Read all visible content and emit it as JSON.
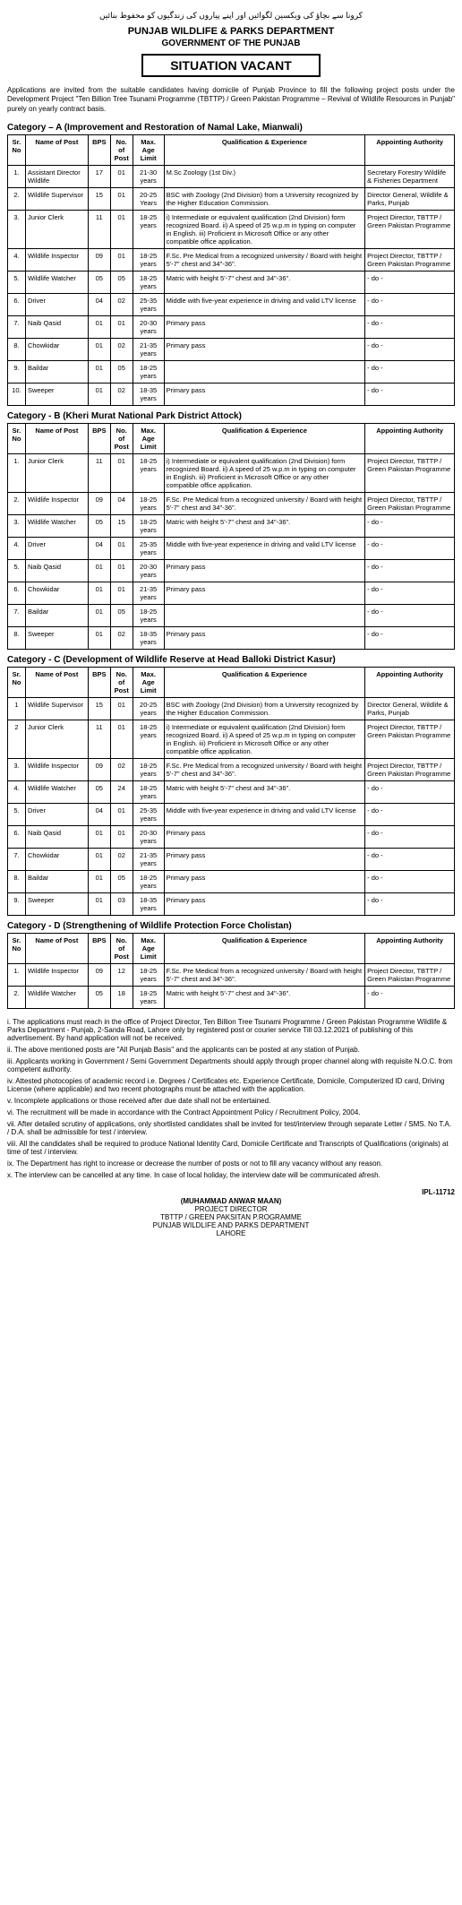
{
  "urdu_top": "کرونا سے بچاؤ کی ویکسین لگوائیں اور اپنے پیاروں کی زندگیوں کو محفوظ بنائیں",
  "dept": "PUNJAB WILDLIFE & PARKS DEPARTMENT",
  "govt": "GOVERNMENT OF THE PUNJAB",
  "title": "SITUATION VACANT",
  "intro": "Applications are invited from the suitable candidates having domicile of Punjab Province to fill the following project posts under the Development Project \"Ten Billion Tree Tsunami Programme (TBTTP) / Green Pakistan Programme – Revival of Wildlife Resources in Punjab\" purely on yearly contract basis.",
  "headers": {
    "sr": "Sr. No",
    "name": "Name of Post",
    "bps": "BPS",
    "no": "No. of Post",
    "age": "Max. Age Limit",
    "qual": "Qualification & Experience",
    "auth": "Appointing Authority"
  },
  "catA": {
    "title": "Category – A (Improvement and Restoration of Namal Lake, Mianwali)",
    "rows": [
      {
        "sr": "1.",
        "name": "Assistant Director Wildlife",
        "bps": "17",
        "no": "01",
        "age": "21-30 years",
        "qual": "M.Sc Zoology (1st Div.)",
        "auth": "Secretary Forestry Wildlife & Fisheries Department"
      },
      {
        "sr": "2.",
        "name": "Wildlife Supervisor",
        "bps": "15",
        "no": "01",
        "age": "20-25 Years",
        "qual": "BSC with Zoology (2nd Division) from a University recognized by the Higher Education Commission.",
        "auth": "Director General, Wildlife & Parks, Punjab"
      },
      {
        "sr": "3.",
        "name": "Junior Clerk",
        "bps": "11",
        "no": "01",
        "age": "18-25 years",
        "qual": "i) Intermediate or equivalent qualification (2nd Division) form recognized Board. ii) A speed of 25 w.p.m in typing on computer in English. iii) Proficient in Microsoft Office or any other compatible office application.",
        "auth": "Project Director, TBTTP / Green Pakistan Programme"
      },
      {
        "sr": "4.",
        "name": "Wildlife Inspector",
        "bps": "09",
        "no": "01",
        "age": "18-25 years",
        "qual": "F.Sc. Pre Medical from a recognized university / Board with height 5'-7\" chest and 34\"-36\".",
        "auth": "Project Director, TBTTP / Green Pakistan Programme"
      },
      {
        "sr": "5.",
        "name": "Wildlife Watcher",
        "bps": "05",
        "no": "05",
        "age": "18-25 years",
        "qual": "Matric with height 5'-7\" chest and 34\"-36\".",
        "auth": "- do -"
      },
      {
        "sr": "6.",
        "name": "Driver",
        "bps": "04",
        "no": "02",
        "age": "25-35 years",
        "qual": "Middle with five-year experience in driving and valid LTV license",
        "auth": "- do -"
      },
      {
        "sr": "7.",
        "name": "Naib Qasid",
        "bps": "01",
        "no": "01",
        "age": "20-30 years",
        "qual": "Primary pass",
        "auth": "- do -"
      },
      {
        "sr": "8.",
        "name": "Chowkidar",
        "bps": "01",
        "no": "02",
        "age": "21-35 years",
        "qual": "Primary pass",
        "auth": "- do -"
      },
      {
        "sr": "9.",
        "name": "Baildar",
        "bps": "01",
        "no": "05",
        "age": "18-25 years",
        "qual": "",
        "auth": "- do -"
      },
      {
        "sr": "10.",
        "name": "Sweeper",
        "bps": "01",
        "no": "02",
        "age": "18-35 years",
        "qual": "Primary pass",
        "auth": "- do -"
      }
    ]
  },
  "catB": {
    "title": "Category - B (Kheri Murat National Park District Attock)",
    "rows": [
      {
        "sr": "1.",
        "name": "Junior Clerk",
        "bps": "11",
        "no": "01",
        "age": "18-25 years",
        "qual": "i) Intermediate or equivalent qualification (2nd Division) form recognized Board. ii) A speed of 25 w.p.m in typing on computer in English. iii) Proficient in Microsoft Office or any other compatible office application.",
        "auth": "Project Director, TBTTP / Green Pakistan Programme"
      },
      {
        "sr": "2.",
        "name": "Wildlife Inspector",
        "bps": "09",
        "no": "04",
        "age": "18-25 years",
        "qual": "F.Sc. Pre Medical from a recognized university / Board with height 5'-7\" chest and 34\"-36\".",
        "auth": "Project Director, TBTTP / Green Pakistan Programme"
      },
      {
        "sr": "3.",
        "name": "Wildlife Watcher",
        "bps": "05",
        "no": "15",
        "age": "18-25 years",
        "qual": "Matric with height 5'-7\" chest and 34\"-36\".",
        "auth": "- do -"
      },
      {
        "sr": "4.",
        "name": "Driver",
        "bps": "04",
        "no": "01",
        "age": "25-35 years",
        "qual": "Middle with five-year experience in driving and valid LTV license",
        "auth": "- do -"
      },
      {
        "sr": "5.",
        "name": "Naib Qasid",
        "bps": "01",
        "no": "01",
        "age": "20-30 years",
        "qual": "Primary pass",
        "auth": "- do -"
      },
      {
        "sr": "6.",
        "name": "Chowkidar",
        "bps": "01",
        "no": "01",
        "age": "21-35 years",
        "qual": "Primary pass",
        "auth": "- do -"
      },
      {
        "sr": "7.",
        "name": "Baildar",
        "bps": "01",
        "no": "05",
        "age": "18-25 years",
        "qual": "",
        "auth": "- do -"
      },
      {
        "sr": "8.",
        "name": "Sweeper",
        "bps": "01",
        "no": "02",
        "age": "18-35 years",
        "qual": "Primary pass",
        "auth": "- do -"
      }
    ]
  },
  "catC": {
    "title": "Category - C (Development of Wildlife Reserve at Head Balloki District Kasur)",
    "rows": [
      {
        "sr": "1",
        "name": "Wildlife Supervisor",
        "bps": "15",
        "no": "01",
        "age": "20-25 years",
        "qual": "BSC with Zoology (2nd Division) from a University recognized by the Higher Education Commission.",
        "auth": "Director General, Wildlife & Parks, Punjab"
      },
      {
        "sr": "2",
        "name": "Junior Clerk",
        "bps": "11",
        "no": "01",
        "age": "18-25 years",
        "qual": "i) Intermediate or equivalent qualification (2nd Division) form recognized Board. ii) A speed of 25 w.p.m in typing on computer in English. iii) Proficient in Microsoft Office or any other compatible office application.",
        "auth": "Project Director, TBTTP / Green Pakistan Programme"
      },
      {
        "sr": "3.",
        "name": "Wildlife Inspector",
        "bps": "09",
        "no": "02",
        "age": "18-25 years",
        "qual": "F.Sc. Pre Medical from a recognized university / Board with height 5'-7\" chest and 34\"-36\".",
        "auth": "Project Director, TBTTP / Green Pakistan Programme"
      },
      {
        "sr": "4.",
        "name": "Wildlife Watcher",
        "bps": "05",
        "no": "24",
        "age": "18-25 years",
        "qual": "Matric with height 5'-7\" chest and 34\"-36\".",
        "auth": "- do -"
      },
      {
        "sr": "5.",
        "name": "Driver",
        "bps": "04",
        "no": "01",
        "age": "25-35 years",
        "qual": "Middle with five-year experience in driving and valid LTV license",
        "auth": "- do -"
      },
      {
        "sr": "6.",
        "name": "Naib Qasid",
        "bps": "01",
        "no": "01",
        "age": "20-30 years",
        "qual": "Primary pass",
        "auth": "- do -"
      },
      {
        "sr": "7.",
        "name": "Chowkidar",
        "bps": "01",
        "no": "02",
        "age": "21-35 years",
        "qual": "Primary pass",
        "auth": "- do -"
      },
      {
        "sr": "8.",
        "name": "Baildar",
        "bps": "01",
        "no": "05",
        "age": "18-25 years",
        "qual": "Primary pass",
        "auth": "- do -"
      },
      {
        "sr": "9.",
        "name": "Sweeper",
        "bps": "01",
        "no": "03",
        "age": "18-35 years",
        "qual": "Primary pass",
        "auth": "- do -"
      }
    ]
  },
  "catD": {
    "title": "Category - D (Strengthening of Wildlife Protection Force Cholistan)",
    "rows": [
      {
        "sr": "1.",
        "name": "Wildlife Inspector",
        "bps": "09",
        "no": "12",
        "age": "18-25 years",
        "qual": "F.Sc. Pre Medical from a recognized university / Board with height 5'-7\" chest and 34\"-36\".",
        "auth": "Project Director, TBTTP / Green Pakistan Programme"
      },
      {
        "sr": "2.",
        "name": "Wildlife Watcher",
        "bps": "05",
        "no": "18",
        "age": "18-25 years",
        "qual": "Matric with height 5'-7\" chest and 34\"-36\".",
        "auth": "- do -"
      }
    ]
  },
  "notes": [
    "i. The applications must reach in the office of Project Director, Ten Billion Tree Tsunami Programme / Green Pakistan Programme Wildlife & Parks Department - Punjab, 2-Sanda Road, Lahore only by registered post or courier service Till 03.12.2021 of publishing of this advertisement. By hand application will not be received.",
    "ii. The above mentioned posts are \"All Punjab Basis\" and the applicants can be posted at any station of Punjab.",
    "iii. Applicants working in Government / Semi Government Departments should apply through proper channel along with requisite N.O.C. from competent authority.",
    "iv. Attested photocopies of academic record i.e. Degrees / Certificates etc. Experience Certificate, Domicile, Computerized ID card, Driving License (where applicable) and two recent photographs must be attached with the application.",
    "v. Incomplete applications or those received after due date shall not be entertained.",
    "vi. The recruitment will be made in accordance with the Contract Appointment Policy / Recruitment Policy, 2004.",
    "vii. After detailed scrutiny of applications, only shortlisted candidates shall be invited for test/interview through separate Letter / SMS. No T.A. / D.A. shall be admissible for test / interview.",
    "viii. All the candidates shall be required to produce National Identity Card, Domicile Certificate and Transcripts of Qualifications (originals) at time of test / interview.",
    "ix. The Department has right to increase or decrease the number of posts or not to fill any vacancy without any reason.",
    "x. The interview can be cancelled at any time. In case of local holiday, the interview date will be communicated afresh."
  ],
  "signature": {
    "name": "(MUHAMMAD ANWAR MAAN)",
    "line1": "PROJECT DIRECTOR",
    "line2": "TBTTP / GREEN PAKSITAN P.ROGRAMME",
    "line3": "PUNJAB WILDLIFE AND PARKS DEPARTMENT",
    "line4": "LAHORE"
  },
  "ipl": "IPL-11712"
}
